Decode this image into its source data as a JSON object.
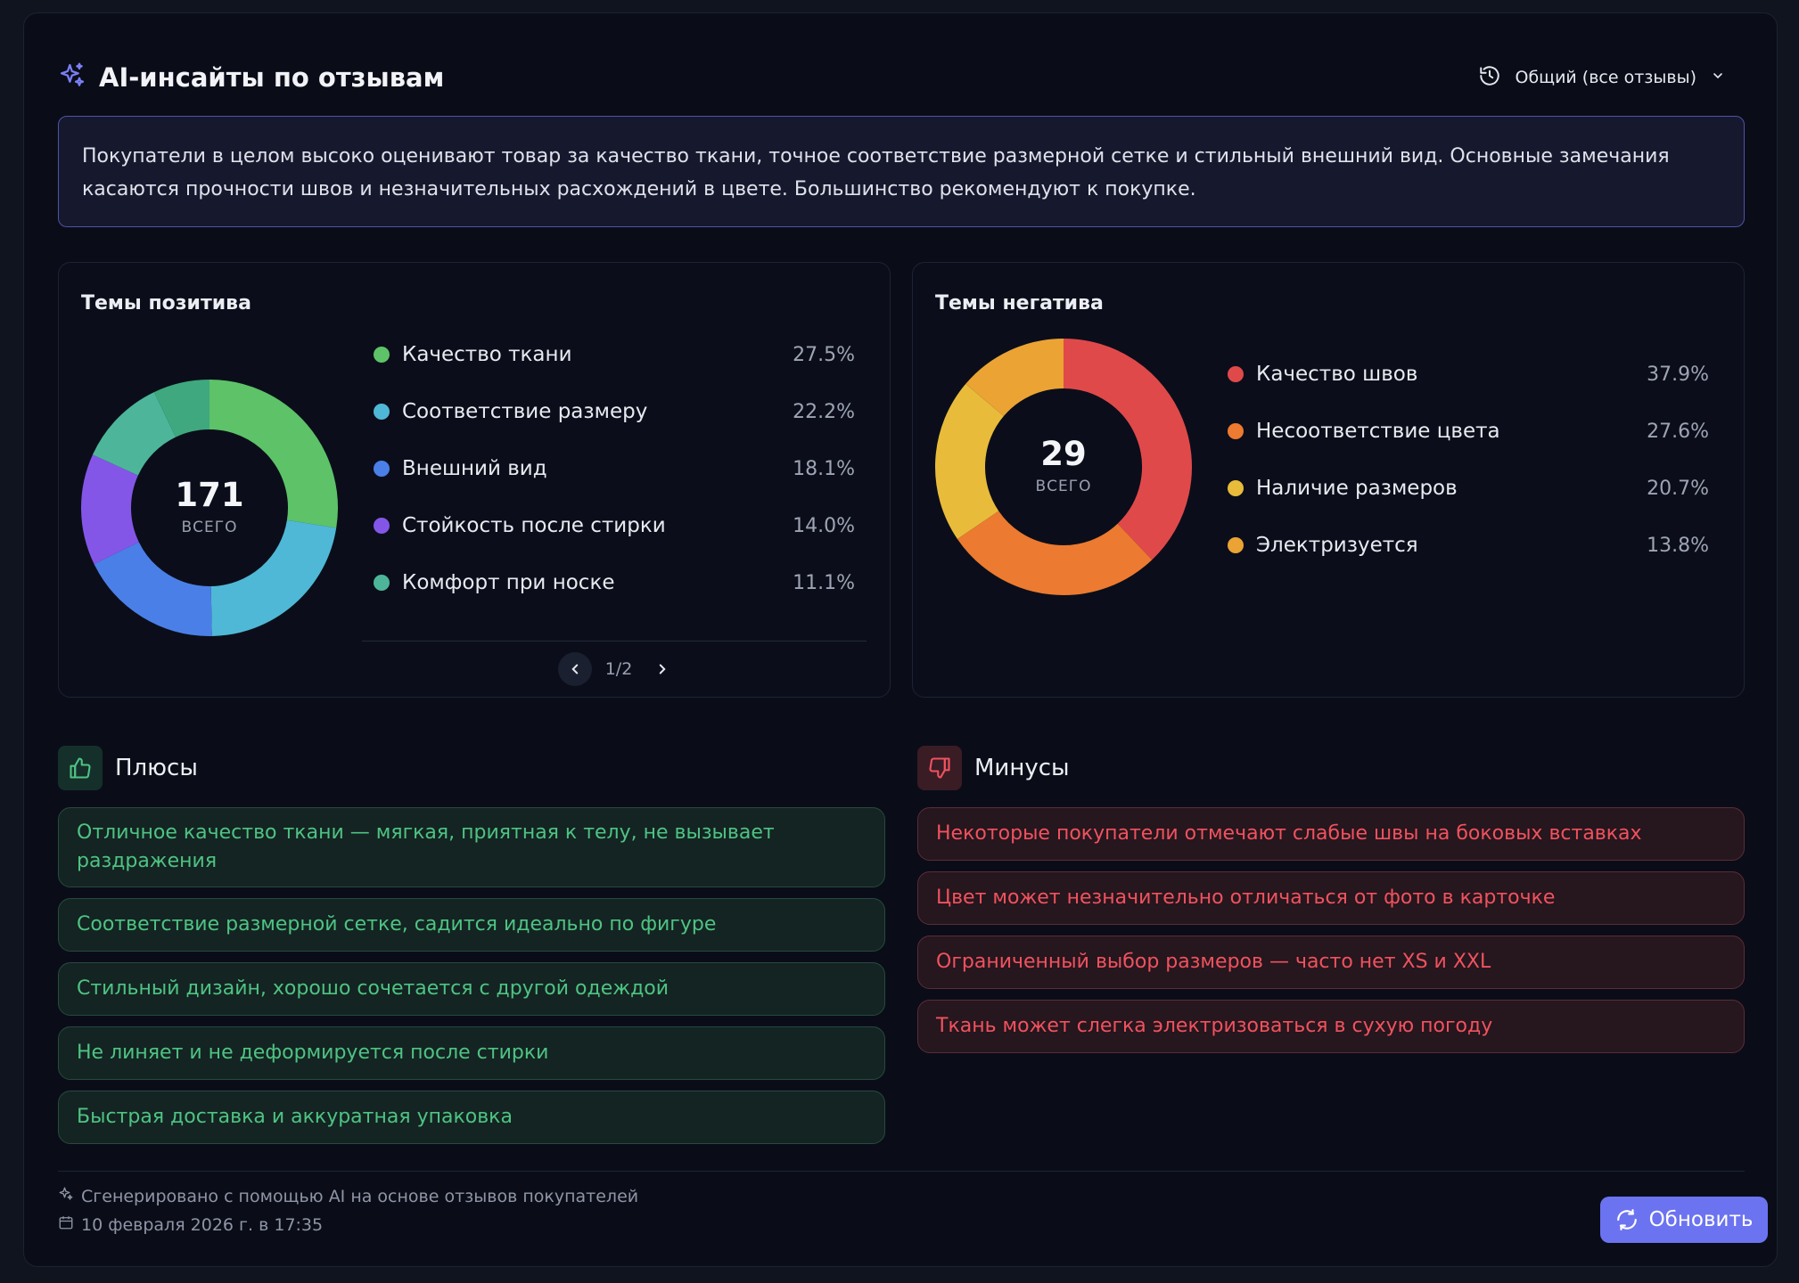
{
  "header": {
    "title": "AI-инсайты по отзывам",
    "filter_label": "Общий (все отзывы)"
  },
  "summary": "Покупатели в целом высоко оценивают товар за качество ткани, точное соответствие размерной сетке и стильный внешний вид. Основные замечания касаются прочности швов и незначительных расхождений в цвете. Большинство рекомендуют к покупке.",
  "positive": {
    "title": "Темы позитива",
    "total": "171",
    "total_label": "ВСЕГО",
    "items": [
      {
        "label": "Качество ткани",
        "pct": "27.5%",
        "color": "#5dc268"
      },
      {
        "label": "Соответствие размеру",
        "pct": "22.2%",
        "color": "#4fb8d6"
      },
      {
        "label": "Внешний вид",
        "pct": "18.1%",
        "color": "#4b7fe8"
      },
      {
        "label": "Стойкость после стирки",
        "pct": "14.0%",
        "color": "#8456e8"
      },
      {
        "label": "Комфорт при носке",
        "pct": "11.1%",
        "color": "#4db69a"
      }
    ],
    "hidden_color": "#3fa87e",
    "page": "1/2"
  },
  "negative": {
    "title": "Темы негатива",
    "total": "29",
    "total_label": "ВСЕГО",
    "items": [
      {
        "label": "Качество швов",
        "pct": "37.9%",
        "color": "#e0494a"
      },
      {
        "label": "Несоответствие цвета",
        "pct": "27.6%",
        "color": "#ec7a30"
      },
      {
        "label": "Наличие размеров",
        "pct": "20.7%",
        "color": "#e8bc3a"
      },
      {
        "label": "Электризуется",
        "pct": "13.8%",
        "color": "#eba334"
      }
    ]
  },
  "pros": {
    "title": "Плюсы",
    "items": [
      "Отличное качество ткани — мягкая, приятная к телу, не вызывает раздражения",
      "Соответствие размерной сетке, садится идеально по фигуре",
      "Стильный дизайн, хорошо сочетается с другой одеждой",
      "Не линяет и не деформируется после стирки",
      "Быстрая доставка и аккуратная упаковка"
    ]
  },
  "cons": {
    "title": "Минусы",
    "items": [
      "Некоторые покупатели отмечают слабые швы на боковых вставках",
      "Цвет может незначительно отличаться от фото в карточке",
      "Ограниченный выбор размеров — часто нет XS и XXL",
      "Ткань может слегка электризоваться в сухую погоду"
    ]
  },
  "footer": {
    "generated": "Сгенерировано с помощью AI на основе отзывов покупателей",
    "date": "10 февраля 2026 г. в 17:35",
    "refresh_label": "Обновить"
  },
  "colors": {
    "accent": "#6c73f0",
    "positive_text": "#4ec383",
    "negative_text": "#f0525e"
  }
}
